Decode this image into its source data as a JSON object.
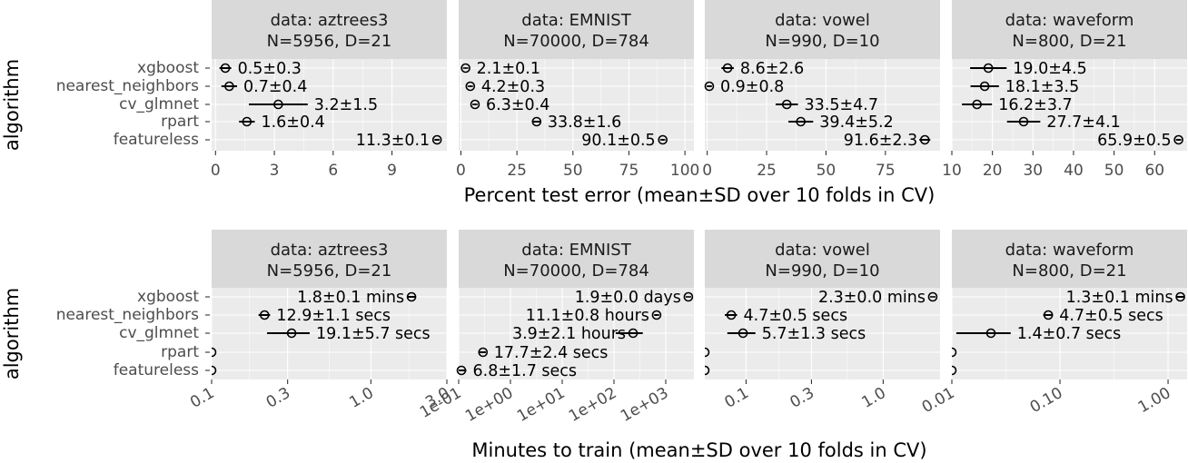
{
  "chart_data": [
    {
      "type": "scatter",
      "title": "",
      "xlabel": "Percent test error (mean±SD over 10 folds in CV)",
      "ylabel": "algorithm",
      "x_scale": "linear",
      "algorithms": [
        "xgboost",
        "nearest_neighbors",
        "cv_glmnet",
        "rpart",
        "featureless"
      ],
      "panels": [
        {
          "strip_line1": "data: aztrees3",
          "strip_line2": "N=5956, D=21",
          "xlim": [
            -0.2,
            11.8
          ],
          "ticks": [
            0,
            3,
            6,
            9
          ],
          "tick_labels": [
            "0",
            "3",
            "6",
            "9"
          ],
          "points": [
            {
              "algorithm": "xgboost",
              "mean": 0.5,
              "sd": 0.3,
              "label": "0.5±0.3"
            },
            {
              "algorithm": "nearest_neighbors",
              "mean": 0.7,
              "sd": 0.4,
              "label": "0.7±0.4"
            },
            {
              "algorithm": "cv_glmnet",
              "mean": 3.2,
              "sd": 1.5,
              "label": "3.2±1.5"
            },
            {
              "algorithm": "rpart",
              "mean": 1.6,
              "sd": 0.4,
              "label": "1.6±0.4"
            },
            {
              "algorithm": "featureless",
              "mean": 11.3,
              "sd": 0.1,
              "label": "11.3±0.1",
              "label_side": "left"
            }
          ]
        },
        {
          "strip_line1": "data: EMNIST",
          "strip_line2": "N=70000, D=784",
          "xlim": [
            -1,
            104
          ],
          "ticks": [
            0,
            25,
            50,
            75,
            100
          ],
          "tick_labels": [
            "0",
            "25",
            "50",
            "75",
            "100"
          ],
          "points": [
            {
              "algorithm": "xgboost",
              "mean": 2.1,
              "sd": 0.1,
              "label": "2.1±0.1"
            },
            {
              "algorithm": "nearest_neighbors",
              "mean": 4.2,
              "sd": 0.3,
              "label": "4.2±0.3"
            },
            {
              "algorithm": "cv_glmnet",
              "mean": 6.3,
              "sd": 0.4,
              "label": "6.3±0.4"
            },
            {
              "algorithm": "rpart",
              "mean": 33.8,
              "sd": 1.6,
              "label": "33.8±1.6"
            },
            {
              "algorithm": "featureless",
              "mean": 90.1,
              "sd": 0.5,
              "label": "90.1±0.5",
              "label_side": "left"
            }
          ]
        },
        {
          "strip_line1": "data: vowel",
          "strip_line2": "N=990, D=10",
          "xlim": [
            -1,
            98
          ],
          "ticks": [
            0,
            25,
            50,
            75
          ],
          "tick_labels": [
            "0",
            "25",
            "50",
            "75"
          ],
          "points": [
            {
              "algorithm": "xgboost",
              "mean": 8.6,
              "sd": 2.6,
              "label": "8.6±2.6"
            },
            {
              "algorithm": "nearest_neighbors",
              "mean": 0.9,
              "sd": 0.8,
              "label": "0.9±0.8"
            },
            {
              "algorithm": "cv_glmnet",
              "mean": 33.5,
              "sd": 4.7,
              "label": "33.5±4.7"
            },
            {
              "algorithm": "rpart",
              "mean": 39.4,
              "sd": 5.2,
              "label": "39.4±5.2"
            },
            {
              "algorithm": "featureless",
              "mean": 91.6,
              "sd": 2.3,
              "label": "91.6±2.3",
              "label_side": "left"
            }
          ]
        },
        {
          "strip_line1": "data: waveform",
          "strip_line2": "N=800, D=21",
          "xlim": [
            10,
            68
          ],
          "ticks": [
            10,
            20,
            30,
            40,
            50,
            60
          ],
          "tick_labels": [
            "10",
            "20",
            "30",
            "40",
            "50",
            "60"
          ],
          "points": [
            {
              "algorithm": "xgboost",
              "mean": 19.0,
              "sd": 4.5,
              "label": "19.0±4.5"
            },
            {
              "algorithm": "nearest_neighbors",
              "mean": 18.1,
              "sd": 3.5,
              "label": "18.1±3.5"
            },
            {
              "algorithm": "cv_glmnet",
              "mean": 16.2,
              "sd": 3.7,
              "label": "16.2±3.7"
            },
            {
              "algorithm": "rpart",
              "mean": 27.7,
              "sd": 4.1,
              "label": "27.7±4.1"
            },
            {
              "algorithm": "featureless",
              "mean": 65.9,
              "sd": 0.5,
              "label": "65.9±0.5",
              "label_side": "left"
            }
          ]
        }
      ]
    },
    {
      "type": "scatter",
      "title": "",
      "xlabel": "Minutes to train (mean±SD over 10 folds in CV)",
      "ylabel": "algorithm",
      "x_scale": "log10",
      "algorithms": [
        "xgboost",
        "nearest_neighbors",
        "cv_glmnet",
        "rpart",
        "featureless"
      ],
      "panels": [
        {
          "strip_line1": "data: aztrees3",
          "strip_line2": "N=5956, D=21",
          "xlim": [
            0.1,
            3.0
          ],
          "ticks": [
            0.1,
            0.3,
            1.0,
            3.0
          ],
          "tick_labels": [
            "0.1",
            "0.3",
            "1.0",
            "3.0"
          ],
          "points": [
            {
              "algorithm": "xgboost",
              "mean": 1.8,
              "sd": 0.1,
              "label": "1.8±0.1 mins",
              "label_side": "left"
            },
            {
              "algorithm": "nearest_neighbors",
              "mean": 0.215,
              "sd": 0.018,
              "label": "12.9±1.1 secs"
            },
            {
              "algorithm": "cv_glmnet",
              "mean": 0.318,
              "sd": 0.095,
              "label": "19.1±5.7 secs"
            },
            {
              "algorithm": "rpart",
              "mean": 0.1,
              "sd": 0,
              "label": ""
            },
            {
              "algorithm": "featureless",
              "mean": 0.1,
              "sd": 0,
              "label": ""
            }
          ]
        },
        {
          "strip_line1": "data: EMNIST",
          "strip_line2": "N=70000, D=784",
          "xlim": [
            0.1,
            3500
          ],
          "ticks": [
            0.1,
            1,
            10,
            100,
            1000
          ],
          "tick_labels": [
            "1e-01",
            "1e+00",
            "1e+01",
            "1e+02",
            "1e+03"
          ],
          "points": [
            {
              "algorithm": "xgboost",
              "mean": 2736,
              "sd": 0,
              "label": "1.9±0.0 days",
              "label_side": "left"
            },
            {
              "algorithm": "nearest_neighbors",
              "mean": 666,
              "sd": 48,
              "label": "11.1±0.8 hours",
              "label_side": "left"
            },
            {
              "algorithm": "cv_glmnet",
              "mean": 234,
              "sd": 126,
              "label": "3.9±2.1 hours",
              "label_side": "left"
            },
            {
              "algorithm": "rpart",
              "mean": 0.295,
              "sd": 0.04,
              "label": "17.7±2.4 secs"
            },
            {
              "algorithm": "featureless",
              "mean": 0.113,
              "sd": 0.028,
              "label": "6.8±1.7 secs"
            }
          ]
        },
        {
          "strip_line1": "data: vowel",
          "strip_line2": "N=990, D=10",
          "xlim": [
            0.05,
            2.6
          ],
          "ticks": [
            0.1,
            0.3,
            1.0
          ],
          "tick_labels": [
            "0.1",
            "0.3",
            "1.0"
          ],
          "points": [
            {
              "algorithm": "xgboost",
              "mean": 2.3,
              "sd": 0,
              "label": "2.3±0.0 mins",
              "label_side": "left"
            },
            {
              "algorithm": "nearest_neighbors",
              "mean": 0.078,
              "sd": 0.008,
              "label": "4.7±0.5 secs"
            },
            {
              "algorithm": "cv_glmnet",
              "mean": 0.095,
              "sd": 0.022,
              "label": "5.7±1.3 secs"
            },
            {
              "algorithm": "rpart",
              "mean": 0.05,
              "sd": 0,
              "label": ""
            },
            {
              "algorithm": "featureless",
              "mean": 0.05,
              "sd": 0,
              "label": ""
            }
          ]
        },
        {
          "strip_line1": "data: waveform",
          "strip_line2": "N=800, D=21",
          "xlim": [
            0.01,
            1.5
          ],
          "ticks": [
            0.01,
            0.1,
            1.0
          ],
          "tick_labels": [
            "0.01",
            "0.10",
            "1.00"
          ],
          "points": [
            {
              "algorithm": "xgboost",
              "mean": 1.3,
              "sd": 0.1,
              "label": "1.3±0.1 mins",
              "label_side": "left"
            },
            {
              "algorithm": "nearest_neighbors",
              "mean": 0.078,
              "sd": 0.008,
              "label": "4.7±0.5 secs"
            },
            {
              "algorithm": "cv_glmnet",
              "mean": 0.023,
              "sd": 0.012,
              "label": "1.4±0.7 secs"
            },
            {
              "algorithm": "rpart",
              "mean": 0.01,
              "sd": 0,
              "label": ""
            },
            {
              "algorithm": "featureless",
              "mean": 0.01,
              "sd": 0,
              "label": ""
            }
          ]
        }
      ]
    }
  ]
}
